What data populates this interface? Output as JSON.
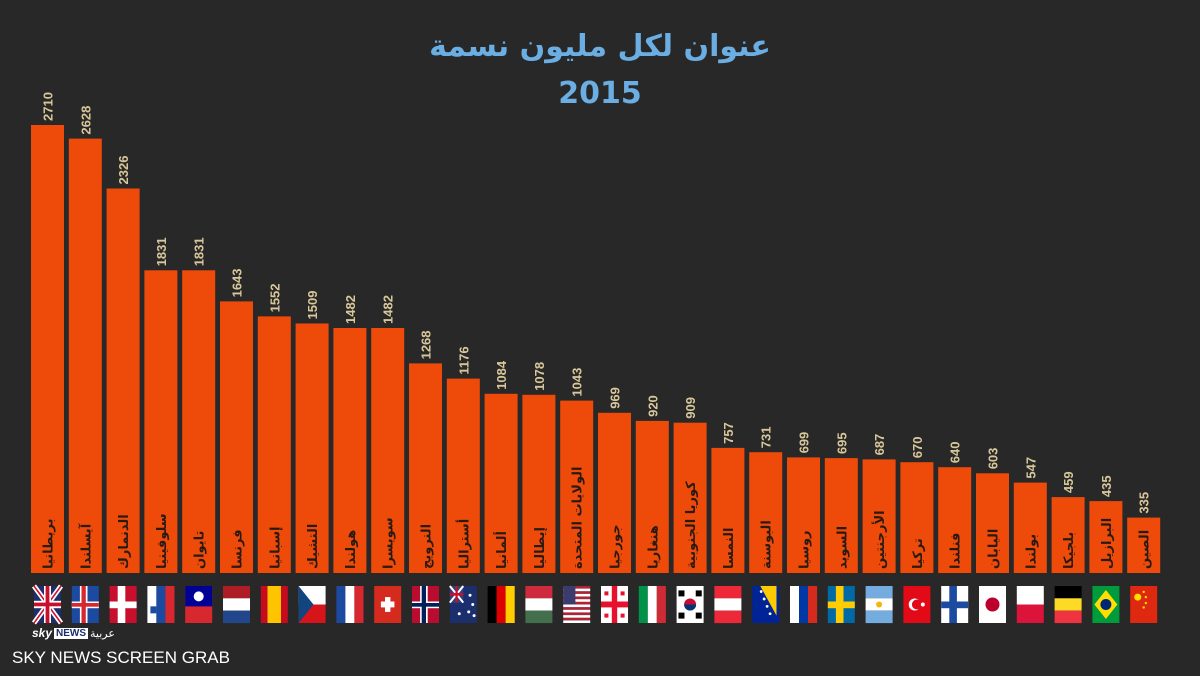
{
  "chart_data": {
    "type": "bar",
    "title": "عنوان لكل مليون نسمة",
    "subtitle": "2015",
    "categories": [
      "بريطانيا",
      "آيسلندا",
      "الدنمارك",
      "سلوفينيا",
      "تايوان",
      "فرنسا",
      "إسبانيا",
      "التشيك",
      "هولندا",
      "سويسرا",
      "النرويج",
      "أستراليا",
      "ألمانيا",
      "إيطاليا",
      "الولايات المتحدة",
      "جورجيا",
      "هنغاريا",
      "كوريا الجنوبية",
      "النمسا",
      "البوسنة",
      "روسيا",
      "السويد",
      "الأرجنتين",
      "تركيا",
      "فنلندا",
      "اليابان",
      "بولندا",
      "بلجيكا",
      "البرازيل",
      "الصين"
    ],
    "values": [
      2710,
      2628,
      2326,
      1831,
      1831,
      1643,
      1552,
      1509,
      1482,
      1482,
      1268,
      1176,
      1084,
      1078,
      1043,
      969,
      920,
      909,
      757,
      731,
      699,
      695,
      687,
      670,
      640,
      603,
      547,
      459,
      435,
      335
    ],
    "flags": [
      "uk",
      "iceland",
      "denmark",
      "slovenia",
      "taiwan",
      "netherlands",
      "spain",
      "czech",
      "france",
      "switzerland",
      "norway",
      "australia",
      "germany",
      "hungary",
      "usa",
      "georgia",
      "italy",
      "south-korea",
      "austria",
      "bosnia",
      "russia",
      "sweden",
      "argentina",
      "turkey",
      "finland",
      "japan",
      "poland",
      "belgium",
      "brazil",
      "china"
    ],
    "xlabel": "",
    "ylabel": "",
    "ylim": [
      0,
      2710
    ],
    "bar_color": "#ee4b0b",
    "title_color": "#6aaee3"
  },
  "branding": {
    "logo_sky": "sky",
    "logo_news": "NEWS",
    "logo_arabic": "عربية",
    "watermark": "SKY NEWS SCREEN GRAB"
  }
}
